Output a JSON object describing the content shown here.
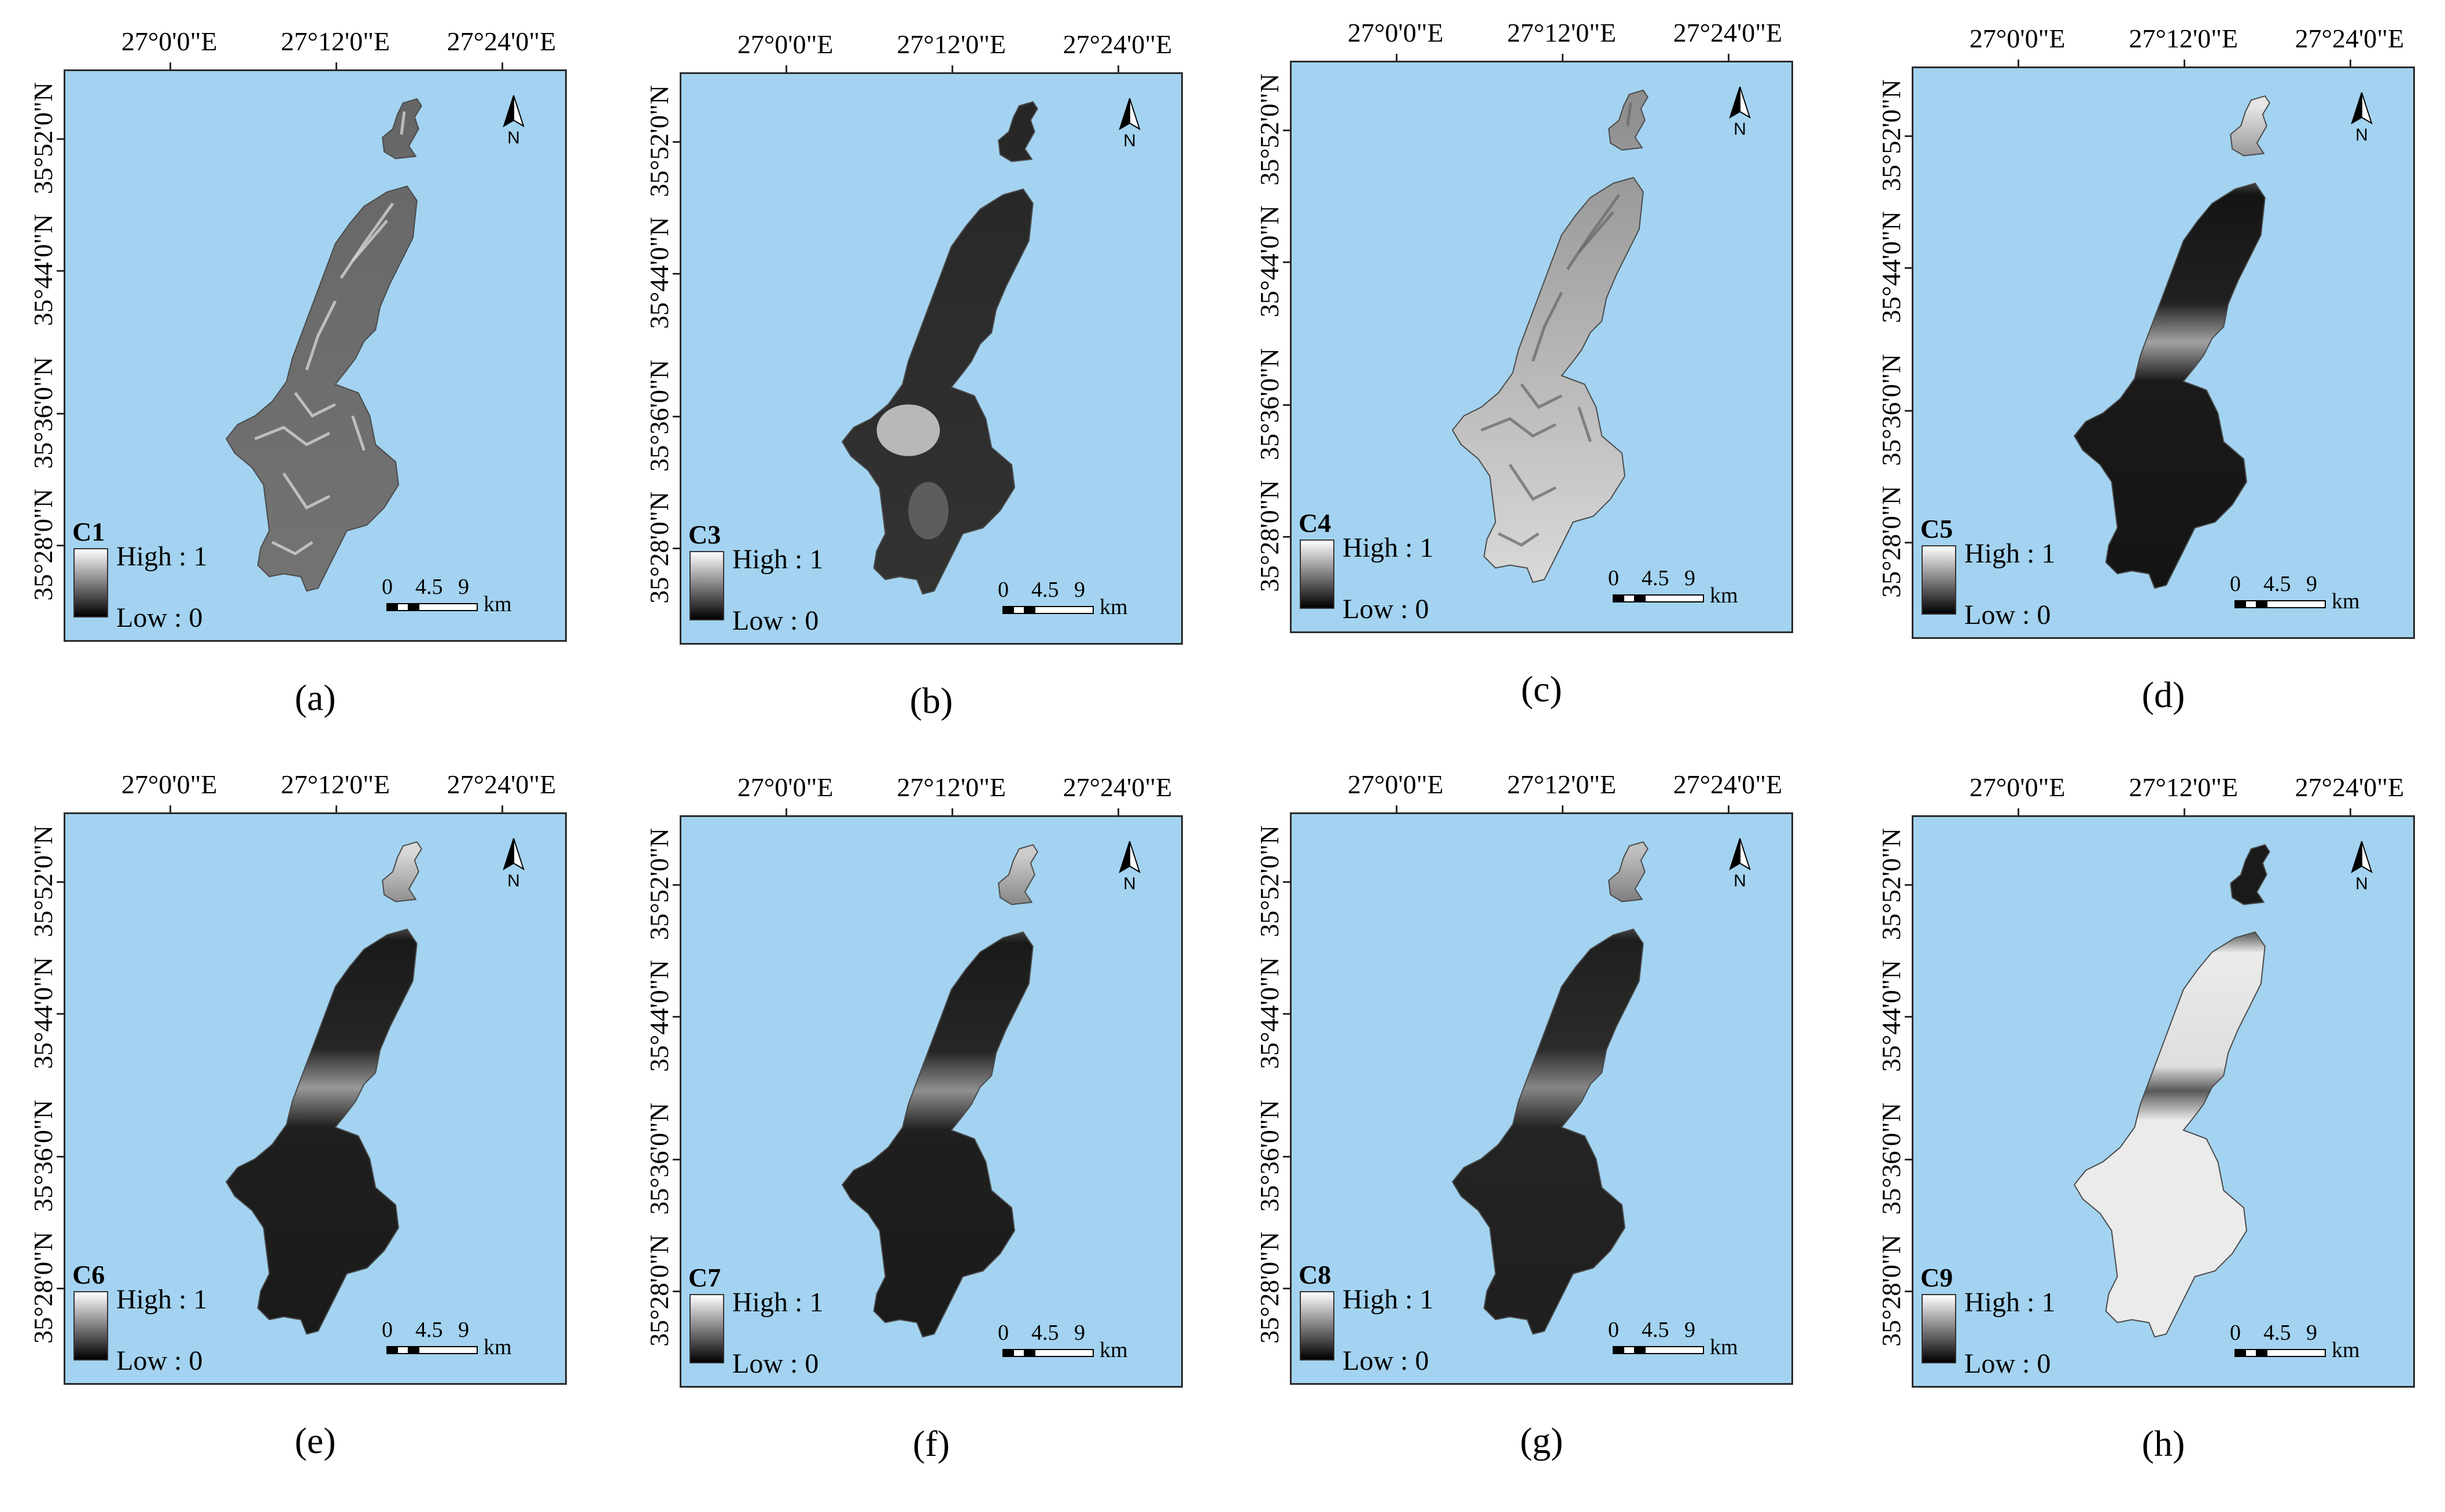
{
  "lon_labels": [
    "27°0'0\"E",
    "27°12'0\"E",
    "27°24'0\"E"
  ],
  "lat_labels": [
    "35°52'0\"N",
    "35°44'0\"N",
    "35°36'0\"N",
    "35°28'0\"N"
  ],
  "north_label": "N",
  "legend": {
    "high": "High : 1",
    "low": "Low : 0"
  },
  "scale": {
    "ticks": [
      "0",
      "4.5",
      "9"
    ],
    "unit": "km"
  },
  "panels": [
    {
      "label": "(a)",
      "criterion": "C1",
      "style": "rugged",
      "north_value": 0.4,
      "south_value": 0.45
    },
    {
      "label": "(b)",
      "criterion": "C3",
      "style": "elevation",
      "north_value": 0.15,
      "south_value": 0.2
    },
    {
      "label": "(c)",
      "criterion": "C4",
      "style": "light",
      "north_value": 0.55,
      "south_value": 0.85
    },
    {
      "label": "(d)",
      "criterion": "C5",
      "style": "gradient",
      "north_value": 0.9,
      "south_value": 0.08
    },
    {
      "label": "(e)",
      "criterion": "C6",
      "style": "gradient",
      "north_value": 0.85,
      "south_value": 0.1
    },
    {
      "label": "(f)",
      "criterion": "C7",
      "style": "gradient",
      "north_value": 0.8,
      "south_value": 0.1
    },
    {
      "label": "(g)",
      "criterion": "C8",
      "style": "gradient",
      "north_value": 0.75,
      "south_value": 0.12
    },
    {
      "label": "(h)",
      "criterion": "C9",
      "style": "inverse",
      "north_value": 0.1,
      "south_value": 0.92
    }
  ]
}
